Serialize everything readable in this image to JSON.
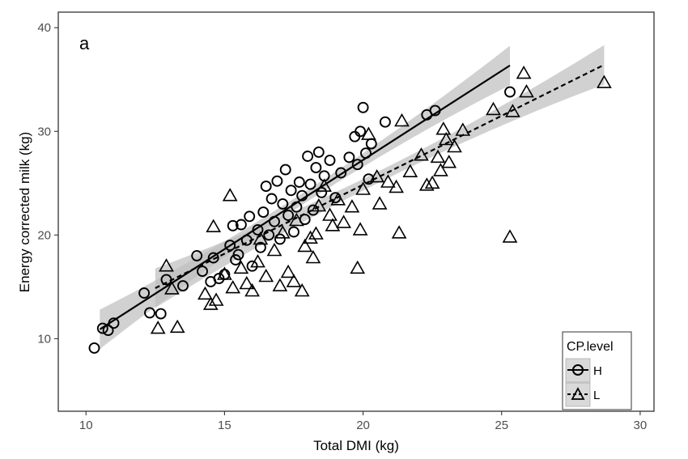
{
  "chart_data": {
    "type": "scatter",
    "panel_label": "a",
    "xlabel": "Total DMI (kg)",
    "ylabel": "Energy corrected milk (kg)",
    "xlim": [
      9.0,
      30.5
    ],
    "ylim": [
      3.0,
      41.5
    ],
    "xticks": [
      10,
      15,
      20,
      25,
      30
    ],
    "yticks": [
      10,
      20,
      30,
      40
    ],
    "grid": false,
    "legend_position": "bottom-right",
    "legend": {
      "title": "CP.level",
      "entries": [
        "H",
        "L"
      ]
    },
    "series": [
      {
        "name": "H",
        "marker": "circle",
        "line_style": "solid",
        "fit": {
          "x_range": [
            10.5,
            25.3
          ],
          "intercept": -7.16,
          "slope": 1.72
        },
        "points": [
          [
            10.3,
            9.1
          ],
          [
            10.6,
            11.0
          ],
          [
            10.8,
            10.8
          ],
          [
            11.0,
            11.5
          ],
          [
            12.1,
            14.4
          ],
          [
            12.3,
            12.5
          ],
          [
            12.7,
            12.4
          ],
          [
            12.9,
            15.7
          ],
          [
            13.5,
            15.1
          ],
          [
            14.0,
            18.0
          ],
          [
            14.2,
            16.5
          ],
          [
            14.5,
            15.5
          ],
          [
            14.6,
            17.8
          ],
          [
            14.8,
            15.8
          ],
          [
            15.0,
            16.2
          ],
          [
            15.2,
            19.0
          ],
          [
            15.3,
            20.9
          ],
          [
            15.4,
            17.6
          ],
          [
            15.5,
            18.1
          ],
          [
            15.6,
            21.0
          ],
          [
            15.8,
            19.5
          ],
          [
            15.9,
            21.8
          ],
          [
            16.0,
            17.0
          ],
          [
            16.2,
            20.5
          ],
          [
            16.3,
            18.8
          ],
          [
            16.4,
            22.2
          ],
          [
            16.5,
            24.7
          ],
          [
            16.6,
            20.0
          ],
          [
            16.7,
            23.5
          ],
          [
            16.8,
            21.3
          ],
          [
            16.9,
            25.2
          ],
          [
            17.0,
            19.6
          ],
          [
            17.1,
            23.0
          ],
          [
            17.2,
            26.3
          ],
          [
            17.3,
            21.9
          ],
          [
            17.4,
            24.3
          ],
          [
            17.5,
            20.3
          ],
          [
            17.6,
            22.7
          ],
          [
            17.7,
            25.1
          ],
          [
            17.8,
            23.8
          ],
          [
            17.9,
            21.5
          ],
          [
            18.0,
            27.6
          ],
          [
            18.1,
            24.9
          ],
          [
            18.2,
            22.4
          ],
          [
            18.3,
            26.5
          ],
          [
            18.4,
            28.0
          ],
          [
            18.5,
            24.1
          ],
          [
            18.6,
            25.7
          ],
          [
            18.8,
            27.2
          ],
          [
            19.0,
            23.6
          ],
          [
            19.2,
            26.0
          ],
          [
            19.5,
            27.5
          ],
          [
            19.7,
            29.5
          ],
          [
            19.8,
            26.8
          ],
          [
            19.9,
            30.0
          ],
          [
            20.0,
            32.3
          ],
          [
            20.1,
            27.9
          ],
          [
            20.2,
            25.4
          ],
          [
            20.3,
            28.8
          ],
          [
            20.8,
            30.9
          ],
          [
            22.3,
            31.6
          ],
          [
            22.6,
            32.0
          ],
          [
            25.3,
            33.8
          ]
        ]
      },
      {
        "name": "L",
        "marker": "triangle",
        "line_style": "dashed",
        "fit": {
          "x_range": [
            12.5,
            28.7
          ],
          "intercept": -1.75,
          "slope": 1.33
        },
        "points": [
          [
            12.6,
            11.0
          ],
          [
            12.9,
            17.0
          ],
          [
            13.1,
            14.8
          ],
          [
            13.3,
            11.1
          ],
          [
            14.3,
            14.3
          ],
          [
            14.5,
            13.3
          ],
          [
            14.6,
            20.8
          ],
          [
            14.7,
            13.7
          ],
          [
            15.0,
            16.2
          ],
          [
            15.2,
            23.8
          ],
          [
            15.3,
            14.9
          ],
          [
            15.6,
            16.8
          ],
          [
            15.8,
            15.3
          ],
          [
            16.0,
            14.6
          ],
          [
            16.2,
            17.4
          ],
          [
            16.3,
            19.6
          ],
          [
            16.5,
            16.0
          ],
          [
            16.8,
            18.5
          ],
          [
            17.0,
            15.1
          ],
          [
            17.1,
            20.2
          ],
          [
            17.3,
            16.4
          ],
          [
            17.5,
            15.5
          ],
          [
            17.6,
            21.4
          ],
          [
            17.8,
            14.6
          ],
          [
            17.9,
            18.9
          ],
          [
            18.1,
            19.7
          ],
          [
            18.2,
            17.8
          ],
          [
            18.3,
            20.1
          ],
          [
            18.4,
            22.8
          ],
          [
            18.6,
            24.7
          ],
          [
            18.8,
            21.9
          ],
          [
            18.9,
            20.9
          ],
          [
            19.1,
            23.4
          ],
          [
            19.3,
            21.2
          ],
          [
            19.6,
            22.7
          ],
          [
            19.8,
            16.8
          ],
          [
            19.9,
            20.5
          ],
          [
            20.0,
            24.4
          ],
          [
            20.2,
            29.7
          ],
          [
            20.5,
            25.6
          ],
          [
            20.6,
            23.0
          ],
          [
            20.9,
            25.1
          ],
          [
            21.2,
            24.6
          ],
          [
            21.3,
            20.2
          ],
          [
            21.4,
            31.0
          ],
          [
            21.7,
            26.1
          ],
          [
            22.1,
            27.7
          ],
          [
            22.3,
            24.8
          ],
          [
            22.5,
            25.0
          ],
          [
            22.7,
            27.5
          ],
          [
            22.8,
            26.2
          ],
          [
            22.9,
            30.2
          ],
          [
            23.0,
            29.2
          ],
          [
            23.1,
            27.0
          ],
          [
            23.3,
            28.5
          ],
          [
            23.6,
            30.1
          ],
          [
            24.7,
            32.1
          ],
          [
            25.3,
            19.8
          ],
          [
            25.4,
            31.9
          ],
          [
            25.8,
            35.6
          ],
          [
            25.9,
            33.8
          ],
          [
            28.7,
            34.7
          ]
        ]
      }
    ]
  }
}
